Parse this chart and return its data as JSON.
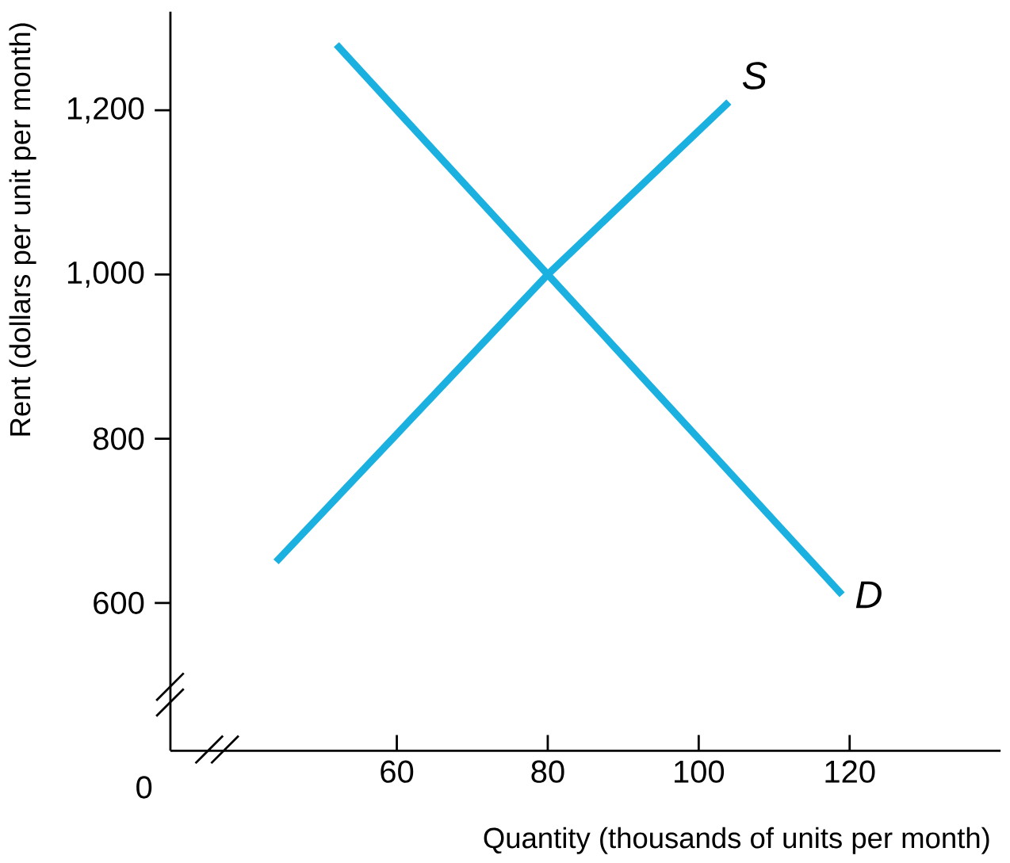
{
  "chart_data": {
    "type": "line",
    "xlabel": "Quantity (thousands of units per month)",
    "ylabel": "Rent (dollars per unit per month)",
    "xlim": [
      30,
      140
    ],
    "ylim": [
      420,
      1320
    ],
    "xticks": [
      60,
      80,
      100,
      120
    ],
    "annotations": [
      "0"
    ],
    "yticks": [
      600,
      800,
      {
        "value": 1000,
        "label": "1,000"
      },
      {
        "value": 1200,
        "label": "1,200"
      }
    ],
    "grid": false,
    "legend": false,
    "marker": "none",
    "line_style": "solid",
    "series": [
      {
        "name": "*S*",
        "color": "#1ab0e0",
        "x": [
          44,
          80,
          104
        ],
        "values": [
          650,
          1000,
          1210
        ]
      },
      {
        "name": "*D*",
        "color": "#1ab0e0",
        "x": [
          52,
          80,
          119
        ],
        "values": [
          1280,
          1000,
          610
        ]
      }
    ]
  }
}
